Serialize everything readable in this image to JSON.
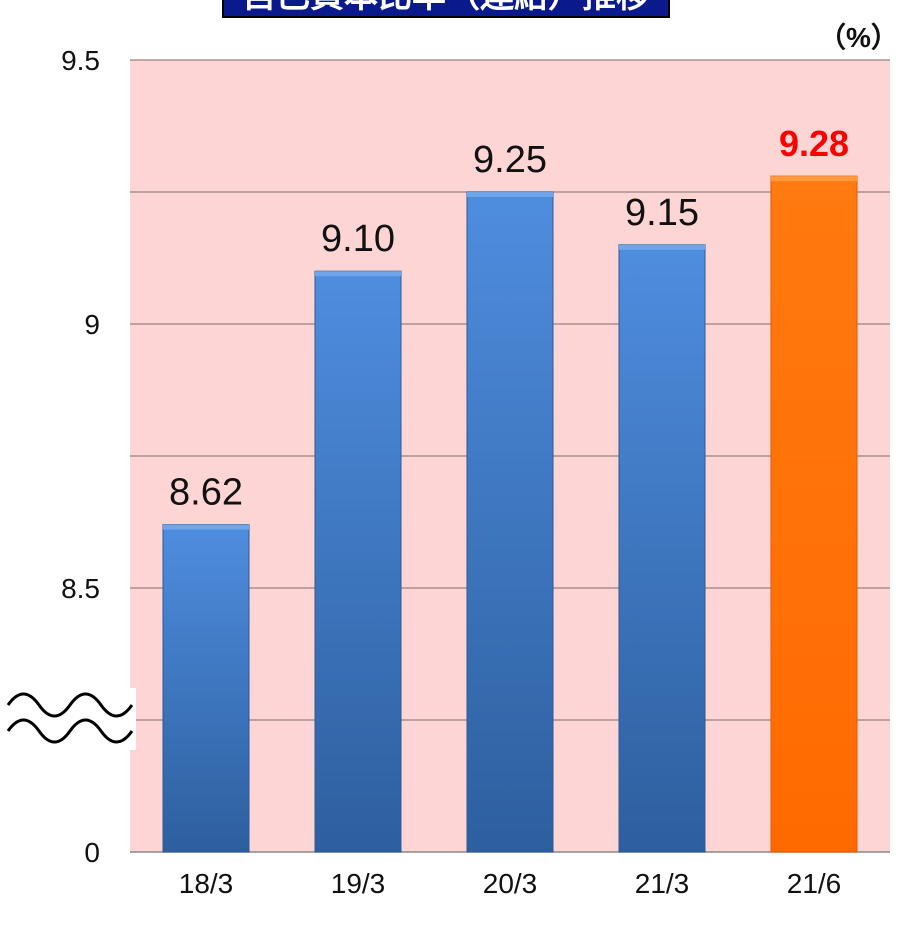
{
  "chart_data": {
    "type": "bar",
    "title": "自己資本比率（連結）推移",
    "unit_label": "（%）",
    "categories": [
      "18/3",
      "19/3",
      "20/3",
      "21/3",
      "21/6"
    ],
    "values": [
      8.62,
      9.1,
      9.25,
      9.15,
      9.28
    ],
    "value_labels": [
      "8.62",
      "9.10",
      "9.25",
      "9.15",
      "9.28"
    ],
    "highlight_index": 4,
    "y_ticks": [
      "9.5",
      "9",
      "8.5",
      "0"
    ],
    "y_axis_break": true,
    "ylim_upper_segment": [
      8.4,
      9.5
    ],
    "grid": true,
    "colors": {
      "plot_background": "#fdd5d5",
      "bar": "#3f78c6",
      "highlight_bar": "#ff6a00",
      "highlight_label": "#ff0000",
      "label": "#111111",
      "gridline": "#9a8080"
    }
  }
}
